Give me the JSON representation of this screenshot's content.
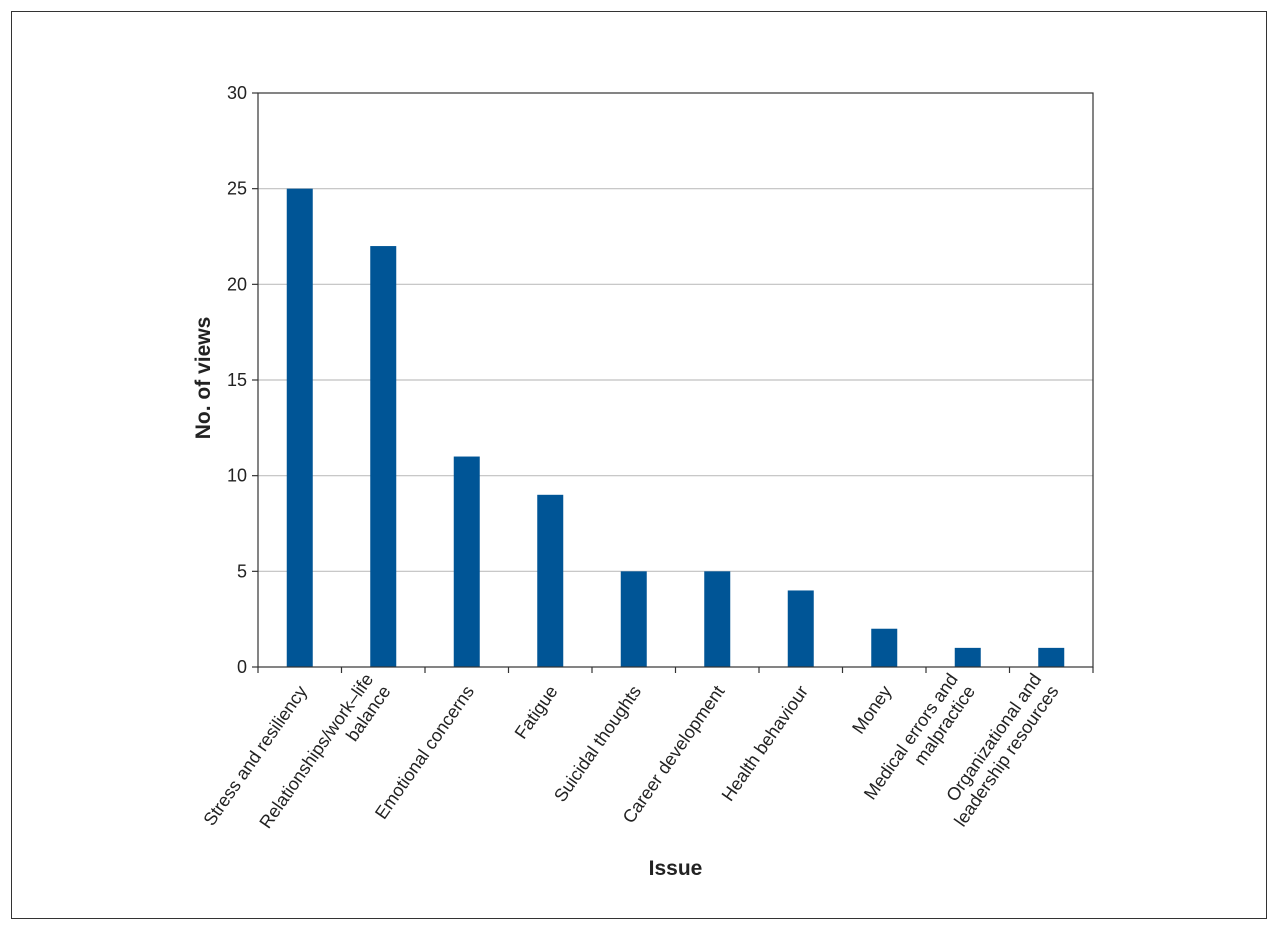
{
  "chart_data": {
    "type": "bar",
    "title": "",
    "xlabel": "Issue",
    "ylabel": "No. of views",
    "categories": [
      [
        "Stress and resiliency"
      ],
      [
        "Relationships/work–life",
        "balance"
      ],
      [
        "Emotional concerns"
      ],
      [
        "Fatigue"
      ],
      [
        "Suicidal thoughts"
      ],
      [
        "Career development"
      ],
      [
        "Health behaviour"
      ],
      [
        "Money"
      ],
      [
        "Medical errors and",
        "malpractice"
      ],
      [
        "Organizational and",
        "leadership resources"
      ]
    ],
    "values": [
      25,
      22,
      11,
      9,
      5,
      5,
      4,
      2,
      1,
      1
    ],
    "ylim": [
      0,
      30
    ],
    "yticks": [
      0,
      5,
      10,
      15,
      20,
      25,
      30
    ],
    "grid": "horizontal",
    "legend": "none",
    "colors": {
      "bar": "#005596",
      "grid": "#c0c0c0",
      "axis": "#333333"
    }
  }
}
